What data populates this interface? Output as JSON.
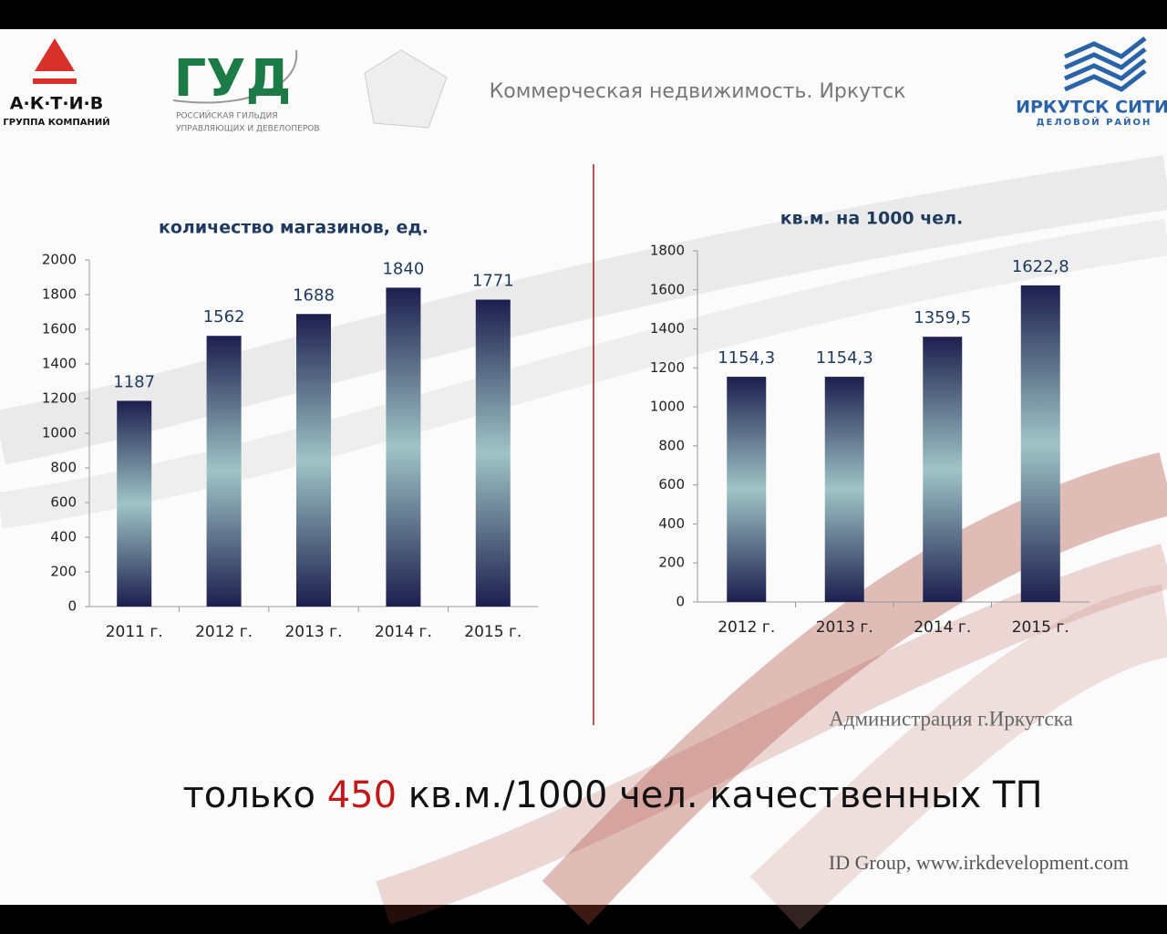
{
  "header": {
    "title": "Коммерческая недвижимость. Иркутск"
  },
  "logos": {
    "aktiv": "А·К·Т·И·В",
    "aktiv_sub": "ГРУППА КОМПАНИЙ",
    "gud": "ГУД",
    "gud_sub1": "РОССИЙСКАЯ ГИЛЬДИЯ",
    "gud_sub2": "УПРАВЛЯЮЩИХ И ДЕВЕЛОПЕРОВ",
    "city": "ИРКУТСК СИТИ",
    "city_sub": "ДЕЛОВОЙ РАЙОН"
  },
  "chart_data": [
    {
      "type": "bar",
      "title": "количество магазинов, ед.",
      "categories": [
        "2011 г.",
        "2012 г.",
        "2013 г.",
        "2014 г.",
        "2015 г."
      ],
      "values": [
        1187,
        1562,
        1688,
        1840,
        1771
      ],
      "ylim": [
        0,
        2000
      ],
      "yticks": [
        0,
        200,
        400,
        600,
        800,
        1000,
        1200,
        1400,
        1600,
        1800,
        2000
      ],
      "grid": false
    },
    {
      "type": "bar",
      "title": "кв.м. на 1000 чел.",
      "categories": [
        "2012 г.",
        "2013 г.",
        "2014 г.",
        "2015 г."
      ],
      "values": [
        1154.3,
        1154.3,
        1359.5,
        1622.8
      ],
      "value_labels": [
        "1154,3",
        "1154,3",
        "1359,5",
        "1622,8"
      ],
      "ylim": [
        0,
        1800
      ],
      "yticks": [
        0,
        200,
        400,
        600,
        800,
        1000,
        1200,
        1400,
        1600,
        1800
      ],
      "grid": false
    }
  ],
  "source": "Администрация г.Иркутска",
  "headline": {
    "before": "только",
    "highlight": "450",
    "after": "кв.м./1000 чел. качественных ТП"
  },
  "footer": "ID Group, www.irkdevelopment.com"
}
